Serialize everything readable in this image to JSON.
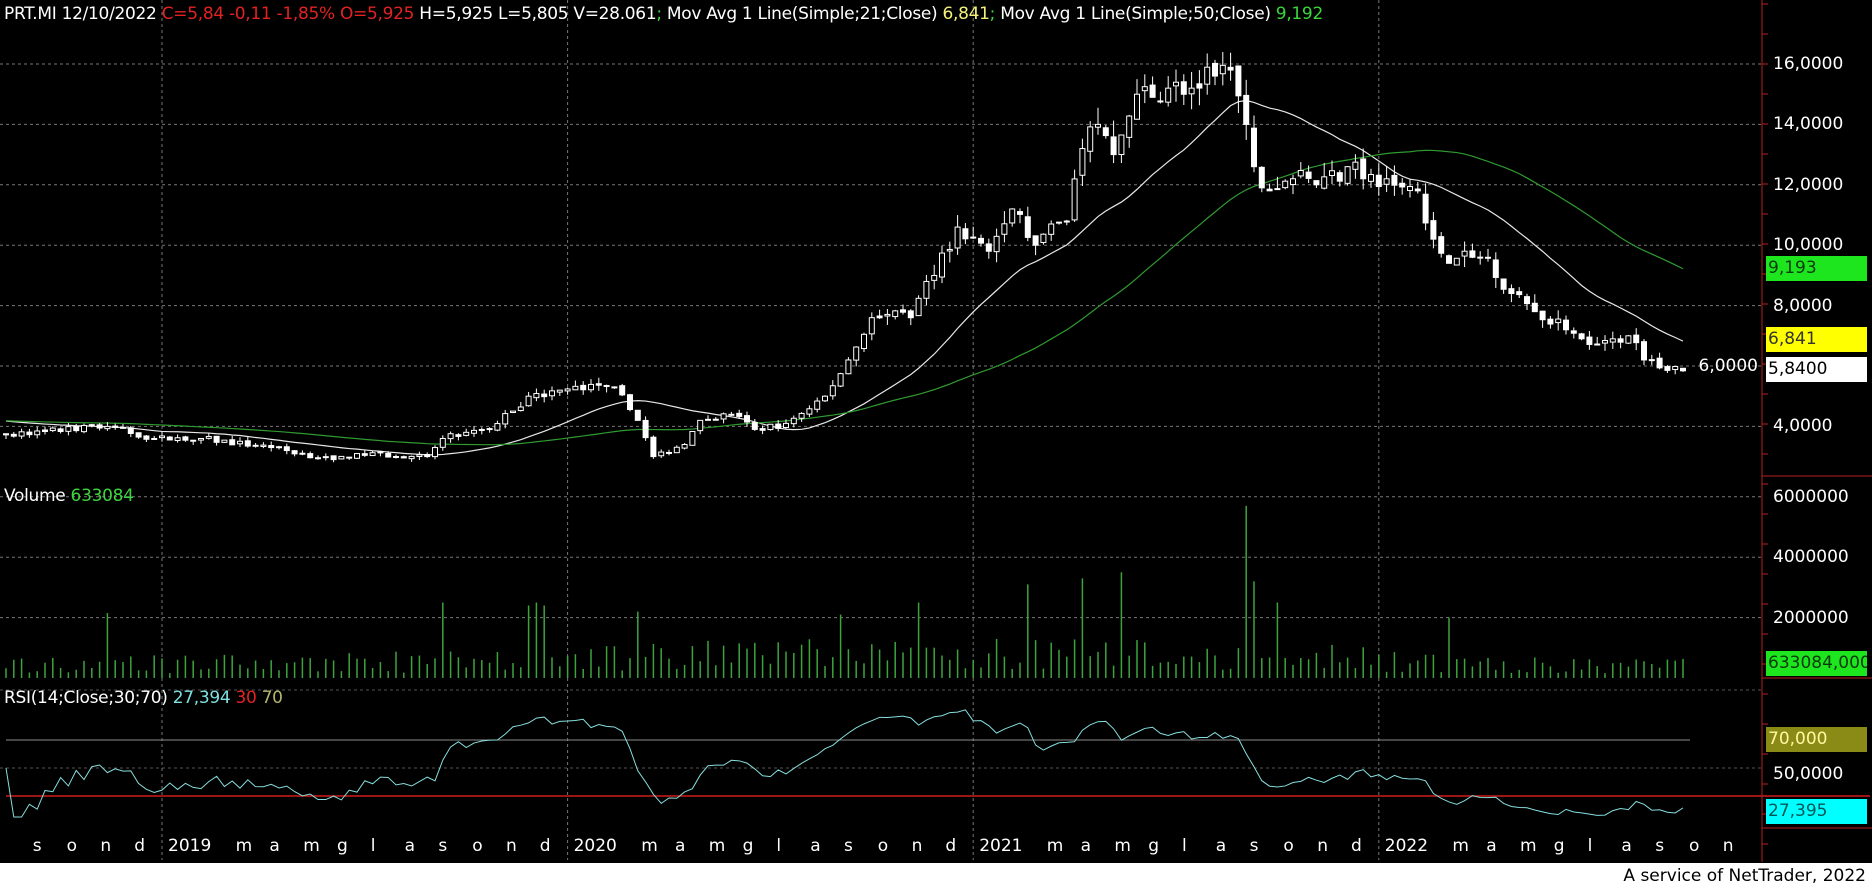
{
  "header": {
    "symbol_date": "PRT.MI 12/10/2022",
    "change": "C=5,84 -0,11 -1,85% O=5,925",
    "hlv": "H=5,925 L=5,805 V=28.061",
    "sep": ";",
    "ma21_label": "Mov Avg 1 Line(Simple;21;Close)",
    "ma21_value": "6,841",
    "ma50_label": "Mov Avg 1 Line(Simple;50;Close)",
    "ma50_value": "9,192"
  },
  "volume_panel": {
    "label": "Volume",
    "value": "633084"
  },
  "rsi_panel": {
    "label": "RSI(14;Close;30;70)",
    "value": "27,394",
    "low": "30",
    "high": "70"
  },
  "price_axis": {
    "ticks": [
      "16,0000",
      "14,0000",
      "12,0000",
      "10,0000",
      "8,0000",
      "6,0000",
      "4,0000"
    ],
    "tick_values": [
      16,
      14,
      12,
      10,
      8,
      6,
      4
    ]
  },
  "price_boxes": {
    "ma50": "9,193",
    "ma21": "6,841",
    "last": "5,8400"
  },
  "volume_axis": {
    "ticks": [
      "6000000",
      "4000000",
      "2000000"
    ],
    "tick_values": [
      6000000,
      4000000,
      2000000
    ],
    "last_box": "633084,000"
  },
  "rsi_axis": {
    "high_box": "70,000",
    "mid_tick": "50,0000",
    "last_box": "27,395"
  },
  "colors": {
    "ma21": "#e8e8e8",
    "ma50": "#2f9a2f",
    "volume": "#3da33d",
    "rsi": "#86dede",
    "rsi_high": "#8c8c8c",
    "rsi_low": "#d01c1c",
    "box_green": "#1ee61e",
    "box_yellow": "#ffff00",
    "box_cyan": "#00ffff",
    "box_olive": "#8a8a16"
  },
  "footer": "A service of NetTrader, 2022",
  "chart_data": {
    "type": "candlestick",
    "interval": "weekly",
    "weeks": 216,
    "prehistory_close": 4.2,
    "close_anchors": [
      [
        0,
        3.72
      ],
      [
        13,
        4.0
      ],
      [
        19,
        3.6
      ],
      [
        25,
        3.6
      ],
      [
        34,
        3.3
      ],
      [
        42,
        2.9
      ],
      [
        45,
        3.1
      ],
      [
        54,
        3.0
      ],
      [
        56,
        3.6
      ],
      [
        62,
        3.9
      ],
      [
        67,
        5.0
      ],
      [
        71,
        5.2
      ],
      [
        78,
        5.3
      ],
      [
        81,
        4.2
      ],
      [
        83,
        3.0
      ],
      [
        87,
        3.4
      ],
      [
        89,
        4.2
      ],
      [
        93,
        4.4
      ],
      [
        96,
        3.9
      ],
      [
        100,
        4.1
      ],
      [
        105,
        5.0
      ],
      [
        108,
        6.2
      ],
      [
        111,
        7.6
      ],
      [
        116,
        7.6
      ],
      [
        118,
        8.8
      ],
      [
        122,
        10.6
      ],
      [
        126,
        9.8
      ],
      [
        129,
        11.2
      ],
      [
        132,
        10.0
      ],
      [
        136,
        10.8
      ],
      [
        138,
        13.2
      ],
      [
        140,
        14.0
      ],
      [
        142,
        13.0
      ],
      [
        145,
        15.0
      ],
      [
        149,
        15.2
      ],
      [
        152,
        15.2
      ],
      [
        155,
        15.6
      ],
      [
        157,
        15.8
      ],
      [
        159,
        14.0
      ],
      [
        160,
        12.6
      ],
      [
        162,
        11.8
      ],
      [
        165,
        12.2
      ],
      [
        168,
        12.0
      ],
      [
        172,
        12.6
      ],
      [
        174,
        12.2
      ],
      [
        177,
        12.2
      ],
      [
        181,
        11.8
      ],
      [
        183,
        10.2
      ],
      [
        185,
        9.4
      ],
      [
        188,
        9.6
      ],
      [
        190,
        9.6
      ],
      [
        193,
        8.4
      ],
      [
        196,
        7.8
      ],
      [
        200,
        7.2
      ],
      [
        202,
        6.9
      ],
      [
        206,
        6.9
      ],
      [
        208,
        7.0
      ],
      [
        210,
        6.2
      ],
      [
        215,
        5.84
      ]
    ],
    "last_candle": {
      "open": 5.925,
      "high": 5.925,
      "low": 5.805,
      "close": 5.84,
      "volume": 633084
    },
    "volume_base": [
      [
        0,
        500000
      ],
      [
        60,
        600000
      ],
      [
        100,
        900000
      ],
      [
        160,
        900000
      ],
      [
        190,
        500000
      ],
      [
        215,
        450000
      ]
    ],
    "volume_spikes": [
      [
        13,
        2150000
      ],
      [
        56,
        2500000
      ],
      [
        67,
        2400000
      ],
      [
        68,
        2500000
      ],
      [
        69,
        2400000
      ],
      [
        81,
        2200000
      ],
      [
        107,
        2100000
      ],
      [
        117,
        2500000
      ],
      [
        131,
        3100000
      ],
      [
        138,
        3300000
      ],
      [
        143,
        3500000
      ],
      [
        159,
        5700000
      ],
      [
        160,
        3200000
      ],
      [
        163,
        2500000
      ],
      [
        185,
        2000000
      ]
    ],
    "indicators": [
      "SMA21",
      "SMA50",
      "RSI14"
    ],
    "price_range": [
      2.5,
      17
    ],
    "volume_range": [
      0,
      6200000
    ],
    "rsi_levels": [
      30,
      70
    ],
    "x_labels": [
      "s",
      "o",
      "n",
      "d",
      "2019",
      "",
      "m",
      "a",
      "m",
      "g",
      "l",
      "a",
      "s",
      "o",
      "n",
      "d",
      "2020",
      "",
      "m",
      "a",
      "m",
      "g",
      "l",
      "a",
      "s",
      "o",
      "n",
      "d",
      "2021",
      "",
      "m",
      "a",
      "m",
      "g",
      "l",
      "a",
      "s",
      "o",
      "n",
      "d",
      "2022",
      "",
      "m",
      "a",
      "m",
      "g",
      "l",
      "a",
      "s",
      "o",
      "n"
    ],
    "x_label_start": "2018-09"
  }
}
